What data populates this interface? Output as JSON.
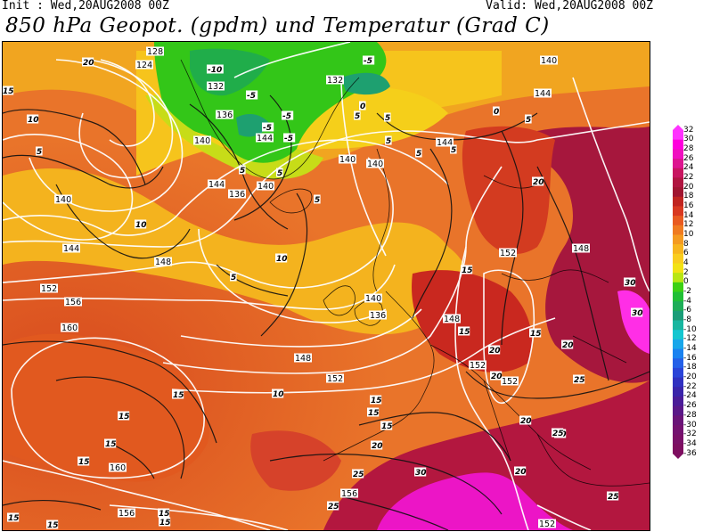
{
  "header": {
    "init": "Init : Wed,20AUG2008 00Z",
    "valid": "Valid: Wed,20AUG2008 00Z",
    "title": "850 hPa Geopot. (gpdm) und Temperatur (Grad C)"
  },
  "legend": {
    "values": [
      "32",
      "30",
      "28",
      "26",
      "24",
      "22",
      "20",
      "18",
      "16",
      "14",
      "12",
      "10",
      "8",
      "6",
      "4",
      "2",
      "0",
      "-2",
      "-4",
      "-6",
      "-8",
      "-10",
      "-12",
      "-14",
      "-16",
      "-18",
      "-20",
      "-22",
      "-24",
      "-26",
      "-28",
      "-30",
      "-32",
      "-34",
      "-36"
    ],
    "colors": [
      "#ff33ff",
      "#ff00dd",
      "#f010c0",
      "#dd1590",
      "#c81560",
      "#b01540",
      "#a01530",
      "#c02420",
      "#d83820",
      "#e85a20",
      "#ef7a20",
      "#f49a20",
      "#f7b51e",
      "#f9cd1e",
      "#f2e214",
      "#b8e614",
      "#3cd014",
      "#20bf36",
      "#1ead58",
      "#1a9d78",
      "#18b6a0",
      "#14c6d0",
      "#18a6ea",
      "#1a82f0",
      "#2460e8",
      "#2a44d8",
      "#3030c0",
      "#3a24aa",
      "#4a1c98",
      "#5a1888",
      "#6a1478",
      "#741270",
      "#7a1068",
      "#7e0e60"
    ]
  },
  "map": {
    "geopotential_labels": [
      "128",
      "124",
      "132",
      "132",
      "140",
      "144",
      "136",
      "140",
      "144",
      "140",
      "136",
      "140",
      "144",
      "140",
      "148",
      "144",
      "148",
      "152",
      "152",
      "152",
      "140",
      "136",
      "148",
      "156",
      "160",
      "140",
      "144",
      "148",
      "152",
      "152",
      "156",
      "156",
      "160",
      "152"
    ],
    "temperature_labels": [
      "20",
      "15",
      "10",
      "5",
      "-10",
      "-5",
      "-5",
      "-5",
      "0",
      "5",
      "5",
      "0",
      "5",
      "-5",
      "-5",
      "5",
      "5",
      "5",
      "5",
      "5",
      "5",
      "5",
      "10",
      "10",
      "15",
      "15",
      "15",
      "15",
      "20",
      "20",
      "20",
      "15",
      "20",
      "20",
      "25",
      "30",
      "30",
      "20",
      "20",
      "25",
      "25",
      "30",
      "25",
      "25",
      "15",
      "15",
      "15",
      "15",
      "15",
      "15",
      "15",
      "10",
      "15",
      "15",
      "20"
    ]
  }
}
